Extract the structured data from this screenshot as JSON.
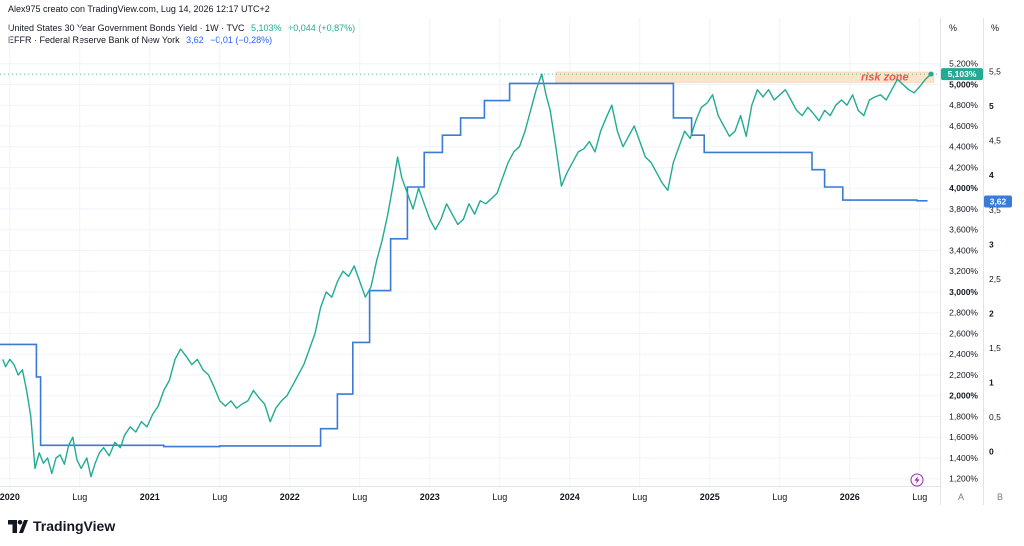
{
  "header": {
    "attribution": "Alex975 creato con TradingView.com, Lug 14, 2026 12:17 UTC+2"
  },
  "legend": [
    {
      "label": "United States 30 Year Government Bonds Yield · 1W · TVC",
      "value": "5,103%",
      "change": "+0,044 (+0,87%)",
      "color": "#22ab94"
    },
    {
      "label": "EFFR · Federal Reserve Bank of New York",
      "value": "3,62",
      "change": "−0,01 (−0,28%)",
      "color": "#2962ff"
    }
  ],
  "logo": {
    "text": "TradingView"
  },
  "colors": {
    "bond": "#22ab94",
    "effr": "#3a7bd5",
    "risk_zone_fill": "#fde4c8",
    "risk_zone_text": "#f05454",
    "grid": "#f0f3fa"
  },
  "chart_data": {
    "type": "line",
    "x_axis": {
      "ticks": [
        {
          "t": 2020.0,
          "label": "2020"
        },
        {
          "t": 2020.5,
          "label": "Lug"
        },
        {
          "t": 2021.0,
          "label": "2021"
        },
        {
          "t": 2021.5,
          "label": "Lug"
        },
        {
          "t": 2022.0,
          "label": "2022"
        },
        {
          "t": 2022.5,
          "label": "Lug"
        },
        {
          "t": 2023.0,
          "label": "2023"
        },
        {
          "t": 2023.5,
          "label": "Lug"
        },
        {
          "t": 2024.0,
          "label": "2024"
        },
        {
          "t": 2024.5,
          "label": "Lug"
        },
        {
          "t": 2025.0,
          "label": "2025"
        },
        {
          "t": 2025.5,
          "label": "Lug"
        },
        {
          "t": 2026.0,
          "label": "2026"
        },
        {
          "t": 2026.5,
          "label": "Lug"
        }
      ],
      "range": [
        2019.93,
        2026.63
      ]
    },
    "left_axis": {
      "unit": "%",
      "range": [
        1.13,
        5.39
      ],
      "ticks": [
        {
          "v": 5.2,
          "label": "5,200%"
        },
        {
          "v": 5.0,
          "label": "5,000%",
          "bold": true
        },
        {
          "v": 4.8,
          "label": "4,800%"
        },
        {
          "v": 4.6,
          "label": "4,600%"
        },
        {
          "v": 4.4,
          "label": "4,400%"
        },
        {
          "v": 4.2,
          "label": "4,200%"
        },
        {
          "v": 4.0,
          "label": "4,000%",
          "bold": true
        },
        {
          "v": 3.8,
          "label": "3,800%"
        },
        {
          "v": 3.6,
          "label": "3,600%"
        },
        {
          "v": 3.4,
          "label": "3,400%"
        },
        {
          "v": 3.2,
          "label": "3,200%"
        },
        {
          "v": 3.0,
          "label": "3,000%",
          "bold": true
        },
        {
          "v": 2.8,
          "label": "2,800%"
        },
        {
          "v": 2.6,
          "label": "2,600%"
        },
        {
          "v": 2.4,
          "label": "2,400%"
        },
        {
          "v": 2.2,
          "label": "2,200%"
        },
        {
          "v": 2.0,
          "label": "2,000%",
          "bold": true
        },
        {
          "v": 1.8,
          "label": "1,800%"
        },
        {
          "v": 1.6,
          "label": "1,600%"
        },
        {
          "v": 1.4,
          "label": "1,400%"
        },
        {
          "v": 1.2,
          "label": "1,200%"
        }
      ],
      "footer": "A"
    },
    "right_axis": {
      "unit": "%",
      "range": [
        -0.5,
        5.9
      ],
      "ticks": [
        {
          "v": 5.5,
          "label": "5,5"
        },
        {
          "v": 5,
          "label": "5",
          "bold": true
        },
        {
          "v": 4.5,
          "label": "4,5"
        },
        {
          "v": 4,
          "label": "4",
          "bold": true
        },
        {
          "v": 3.5,
          "label": "3,5"
        },
        {
          "v": 3,
          "label": "3",
          "bold": true
        },
        {
          "v": 2.5,
          "label": "2,5"
        },
        {
          "v": 2,
          "label": "2",
          "bold": true
        },
        {
          "v": 1.5,
          "label": "1,5"
        },
        {
          "v": 1,
          "label": "1",
          "bold": true
        },
        {
          "v": 0.5,
          "label": "0,5"
        },
        {
          "v": 0,
          "label": "0",
          "bold": true
        }
      ],
      "footer": "B"
    },
    "risk_zone": {
      "label": "risk zone",
      "t_start": 2023.9,
      "t_end": 2026.6,
      "y_low": 5.02,
      "y_high": 5.12
    },
    "series": [
      {
        "name": "United States 30 Year Government Bonds Yield",
        "axis": "left",
        "last_value_label": "5,103%",
        "points": [
          [
            2019.95,
            2.35
          ],
          [
            2019.97,
            2.28
          ],
          [
            2020.0,
            2.35
          ],
          [
            2020.03,
            2.3
          ],
          [
            2020.06,
            2.2
          ],
          [
            2020.09,
            2.25
          ],
          [
            2020.12,
            2.05
          ],
          [
            2020.15,
            1.8
          ],
          [
            2020.18,
            1.3
          ],
          [
            2020.21,
            1.45
          ],
          [
            2020.24,
            1.35
          ],
          [
            2020.27,
            1.4
          ],
          [
            2020.3,
            1.25
          ],
          [
            2020.33,
            1.4
          ],
          [
            2020.36,
            1.43
          ],
          [
            2020.39,
            1.34
          ],
          [
            2020.42,
            1.52
          ],
          [
            2020.45,
            1.6
          ],
          [
            2020.48,
            1.38
          ],
          [
            2020.51,
            1.3
          ],
          [
            2020.55,
            1.4
          ],
          [
            2020.58,
            1.22
          ],
          [
            2020.61,
            1.35
          ],
          [
            2020.64,
            1.45
          ],
          [
            2020.67,
            1.5
          ],
          [
            2020.71,
            1.42
          ],
          [
            2020.75,
            1.55
          ],
          [
            2020.79,
            1.5
          ],
          [
            2020.82,
            1.62
          ],
          [
            2020.86,
            1.7
          ],
          [
            2020.9,
            1.65
          ],
          [
            2020.94,
            1.75
          ],
          [
            2020.98,
            1.7
          ],
          [
            2021.02,
            1.82
          ],
          [
            2021.06,
            1.9
          ],
          [
            2021.1,
            2.05
          ],
          [
            2021.14,
            2.15
          ],
          [
            2021.18,
            2.35
          ],
          [
            2021.22,
            2.45
          ],
          [
            2021.26,
            2.38
          ],
          [
            2021.3,
            2.3
          ],
          [
            2021.34,
            2.35
          ],
          [
            2021.38,
            2.25
          ],
          [
            2021.42,
            2.2
          ],
          [
            2021.46,
            2.08
          ],
          [
            2021.5,
            1.95
          ],
          [
            2021.54,
            1.9
          ],
          [
            2021.58,
            1.95
          ],
          [
            2021.62,
            1.88
          ],
          [
            2021.66,
            1.92
          ],
          [
            2021.7,
            1.95
          ],
          [
            2021.74,
            2.05
          ],
          [
            2021.78,
            1.98
          ],
          [
            2021.82,
            1.92
          ],
          [
            2021.86,
            1.75
          ],
          [
            2021.9,
            1.88
          ],
          [
            2021.94,
            1.95
          ],
          [
            2021.98,
            2.0
          ],
          [
            2022.02,
            2.1
          ],
          [
            2022.06,
            2.2
          ],
          [
            2022.1,
            2.3
          ],
          [
            2022.14,
            2.45
          ],
          [
            2022.18,
            2.6
          ],
          [
            2022.22,
            2.85
          ],
          [
            2022.26,
            3.0
          ],
          [
            2022.3,
            2.95
          ],
          [
            2022.34,
            3.1
          ],
          [
            2022.38,
            3.2
          ],
          [
            2022.42,
            3.15
          ],
          [
            2022.46,
            3.25
          ],
          [
            2022.5,
            3.1
          ],
          [
            2022.54,
            2.95
          ],
          [
            2022.58,
            3.05
          ],
          [
            2022.62,
            3.3
          ],
          [
            2022.66,
            3.5
          ],
          [
            2022.7,
            3.75
          ],
          [
            2022.74,
            4.05
          ],
          [
            2022.77,
            4.3
          ],
          [
            2022.8,
            4.1
          ],
          [
            2022.84,
            3.95
          ],
          [
            2022.88,
            3.8
          ],
          [
            2022.92,
            4.0
          ],
          [
            2022.96,
            3.85
          ],
          [
            2023.0,
            3.7
          ],
          [
            2023.04,
            3.6
          ],
          [
            2023.08,
            3.7
          ],
          [
            2023.12,
            3.85
          ],
          [
            2023.16,
            3.75
          ],
          [
            2023.2,
            3.65
          ],
          [
            2023.24,
            3.7
          ],
          [
            2023.28,
            3.85
          ],
          [
            2023.32,
            3.75
          ],
          [
            2023.36,
            3.88
          ],
          [
            2023.4,
            3.85
          ],
          [
            2023.44,
            3.9
          ],
          [
            2023.48,
            3.95
          ],
          [
            2023.52,
            4.1
          ],
          [
            2023.56,
            4.25
          ],
          [
            2023.6,
            4.35
          ],
          [
            2023.64,
            4.4
          ],
          [
            2023.68,
            4.55
          ],
          [
            2023.72,
            4.75
          ],
          [
            2023.76,
            4.95
          ],
          [
            2023.8,
            5.1
          ],
          [
            2023.83,
            4.9
          ],
          [
            2023.86,
            4.75
          ],
          [
            2023.9,
            4.4
          ],
          [
            2023.94,
            4.02
          ],
          [
            2023.98,
            4.15
          ],
          [
            2024.02,
            4.25
          ],
          [
            2024.06,
            4.35
          ],
          [
            2024.1,
            4.38
          ],
          [
            2024.14,
            4.45
          ],
          [
            2024.18,
            4.35
          ],
          [
            2024.22,
            4.55
          ],
          [
            2024.26,
            4.68
          ],
          [
            2024.3,
            4.8
          ],
          [
            2024.34,
            4.55
          ],
          [
            2024.38,
            4.4
          ],
          [
            2024.42,
            4.5
          ],
          [
            2024.46,
            4.6
          ],
          [
            2024.5,
            4.45
          ],
          [
            2024.54,
            4.3
          ],
          [
            2024.58,
            4.25
          ],
          [
            2024.62,
            4.15
          ],
          [
            2024.66,
            4.05
          ],
          [
            2024.7,
            3.98
          ],
          [
            2024.74,
            4.25
          ],
          [
            2024.78,
            4.4
          ],
          [
            2024.82,
            4.55
          ],
          [
            2024.86,
            4.48
          ],
          [
            2024.9,
            4.65
          ],
          [
            2024.94,
            4.78
          ],
          [
            2024.98,
            4.82
          ],
          [
            2025.02,
            4.9
          ],
          [
            2025.06,
            4.7
          ],
          [
            2025.1,
            4.6
          ],
          [
            2025.14,
            4.5
          ],
          [
            2025.18,
            4.55
          ],
          [
            2025.22,
            4.7
          ],
          [
            2025.26,
            4.5
          ],
          [
            2025.3,
            4.8
          ],
          [
            2025.34,
            4.95
          ],
          [
            2025.38,
            4.88
          ],
          [
            2025.42,
            4.95
          ],
          [
            2025.46,
            4.85
          ],
          [
            2025.5,
            4.9
          ],
          [
            2025.54,
            4.95
          ],
          [
            2025.58,
            4.85
          ],
          [
            2025.62,
            4.75
          ],
          [
            2025.66,
            4.7
          ],
          [
            2025.7,
            4.78
          ],
          [
            2025.74,
            4.72
          ],
          [
            2025.78,
            4.65
          ],
          [
            2025.82,
            4.75
          ],
          [
            2025.86,
            4.7
          ],
          [
            2025.9,
            4.8
          ],
          [
            2025.94,
            4.85
          ],
          [
            2025.98,
            4.8
          ],
          [
            2026.02,
            4.9
          ],
          [
            2026.06,
            4.75
          ],
          [
            2026.1,
            4.7
          ],
          [
            2026.14,
            4.85
          ],
          [
            2026.18,
            4.88
          ],
          [
            2026.22,
            4.9
          ],
          [
            2026.26,
            4.85
          ],
          [
            2026.3,
            4.95
          ],
          [
            2026.34,
            5.05
          ],
          [
            2026.38,
            5.0
          ],
          [
            2026.42,
            4.95
          ],
          [
            2026.46,
            4.92
          ],
          [
            2026.5,
            4.98
          ],
          [
            2026.54,
            5.05
          ],
          [
            2026.58,
            5.1
          ]
        ]
      },
      {
        "name": "EFFR",
        "axis": "right",
        "last_value_label": "3,62",
        "points": [
          [
            2019.93,
            1.55
          ],
          [
            2020.17,
            1.55
          ],
          [
            2020.19,
            1.08
          ],
          [
            2020.22,
            0.09
          ],
          [
            2020.55,
            0.09
          ],
          [
            2020.85,
            0.09
          ],
          [
            2021.1,
            0.07
          ],
          [
            2021.5,
            0.08
          ],
          [
            2021.85,
            0.08
          ],
          [
            2022.2,
            0.08
          ],
          [
            2022.22,
            0.33
          ],
          [
            2022.34,
            0.83
          ],
          [
            2022.45,
            1.58
          ],
          [
            2022.57,
            2.33
          ],
          [
            2022.72,
            3.08
          ],
          [
            2022.84,
            3.83
          ],
          [
            2022.96,
            4.33
          ],
          [
            2023.09,
            4.58
          ],
          [
            2023.22,
            4.83
          ],
          [
            2023.39,
            5.08
          ],
          [
            2023.57,
            5.33
          ],
          [
            2024.72,
            5.33
          ],
          [
            2024.74,
            4.83
          ],
          [
            2024.87,
            4.58
          ],
          [
            2024.96,
            4.33
          ],
          [
            2025.71,
            4.33
          ],
          [
            2025.73,
            4.08
          ],
          [
            2025.82,
            3.83
          ],
          [
            2025.95,
            3.64
          ],
          [
            2026.4,
            3.64
          ],
          [
            2026.48,
            3.63
          ],
          [
            2026.55,
            3.62
          ]
        ]
      }
    ]
  }
}
